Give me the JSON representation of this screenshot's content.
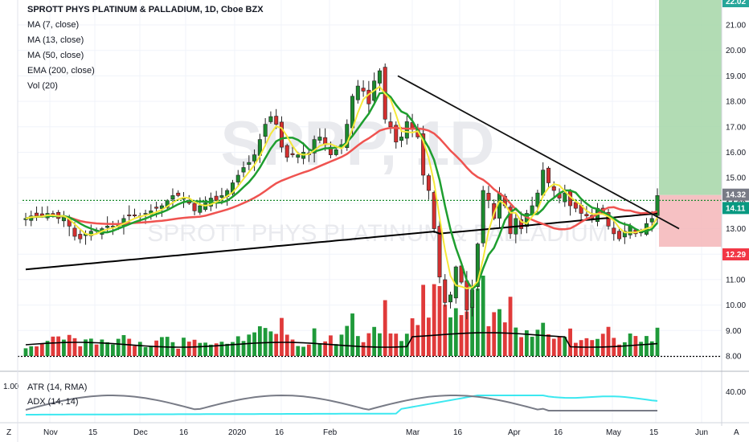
{
  "legend": {
    "title": "SPROTT PHYS PLATINUM & PALLADIUM, 1D, Cboe BZX",
    "ma7": "MA (7, close)",
    "ma13": "MA (13, close)",
    "ma50": "MA (50, close)",
    "ema200": "EMA (200, close)",
    "vol": "Vol (20)"
  },
  "watermark": {
    "ticker": "SPPP, 1D",
    "name": "SPROTT PHYS PLATINUM & PALLADIUM"
  },
  "sub_legend": {
    "atr": "ATR (14, RMA)",
    "adx": "ADX (14, 14)",
    "left_scale_label": "1.00"
  },
  "price_tags": [
    {
      "label": "22.02",
      "color": "#26a69a"
    },
    {
      "label": "14.32",
      "color": "#787b86"
    },
    {
      "label": "14.11",
      "color": "#089981"
    },
    {
      "label": "12.29",
      "color": "#f23645"
    }
  ],
  "chart_data": {
    "type": "candlestick",
    "y_ticks": [
      "8.00",
      "9.00",
      "10.00",
      "11.00",
      "12.00",
      "13.00",
      "14.00",
      "15.00",
      "16.00",
      "17.00",
      "18.00",
      "19.00",
      "20.00",
      "21.00"
    ],
    "ylim": [
      7.5,
      22.2
    ],
    "x_labels": [
      "Nov",
      "15",
      "Dec",
      "16",
      "2020",
      "16",
      "Feb",
      "Mar",
      "16",
      "Apr",
      "16",
      "May",
      "15",
      "Jun"
    ],
    "sub_y_ticks": [
      "40.00"
    ],
    "corner_labels": [
      "Z",
      "A"
    ],
    "close_prices": [
      13.4,
      13.5,
      13.5,
      13.5,
      13.6,
      13.5,
      13.4,
      13.5,
      13.1,
      12.7,
      12.6,
      12.8,
      12.9,
      12.9,
      13.0,
      13.1,
      13.1,
      13.2,
      13.4,
      13.5,
      13.5,
      13.5,
      13.6,
      13.7,
      13.8,
      13.9,
      14.1,
      14.3,
      14.3,
      14.2,
      14.0,
      13.7,
      13.9,
      14.0,
      14.2,
      14.1,
      14.3,
      14.5,
      14.8,
      15.1,
      15.4,
      15.6,
      15.9,
      16.5,
      17.1,
      17.4,
      17.1,
      16.2,
      15.8,
      15.9,
      15.9,
      16.0,
      15.9,
      16.5,
      16.6,
      16.3,
      15.9,
      16.1,
      16.3,
      17.1,
      18.2,
      18.6,
      18.4,
      17.9,
      18.8,
      19.2,
      17.3,
      17.0,
      16.4,
      16.6,
      17.2,
      16.9,
      16.6,
      15.1,
      14.5,
      13.0,
      11.1,
      10.1,
      10.4,
      11.5,
      10.9,
      9.8,
      10.6,
      12.4,
      14.5,
      14.1,
      13.4,
      14.4,
      13.9,
      12.8,
      13.4,
      13.0,
      13.6,
      13.9,
      14.4,
      15.3,
      14.8,
      14.5,
      14.2,
      14.4,
      13.9,
      13.8,
      13.6,
      13.5,
      13.4,
      13.8,
      13.6,
      13.1,
      12.8,
      12.6,
      12.9,
      13.1,
      12.8,
      12.9,
      13.2,
      13.4,
      14.3
    ],
    "series": [
      {
        "name": "MA (7, close)",
        "color": "#f5e83a"
      },
      {
        "name": "MA (13, close)",
        "color": "#1e9e2f"
      },
      {
        "name": "MA (50, close)",
        "color": "#ef5350"
      },
      {
        "name": "EMA (200, close)",
        "color": "#000000"
      },
      {
        "name": "ATR (14, RMA)",
        "color": "#3ce8f0"
      },
      {
        "name": "ADX (14, 14)",
        "color": "#787b86"
      }
    ],
    "horizontal_level": 14.11,
    "trendline": {
      "from_price": 19.0,
      "to_price": 13.0
    },
    "target_zone": {
      "top": 22.02,
      "entry": 14.32,
      "stop": 12.29
    }
  }
}
